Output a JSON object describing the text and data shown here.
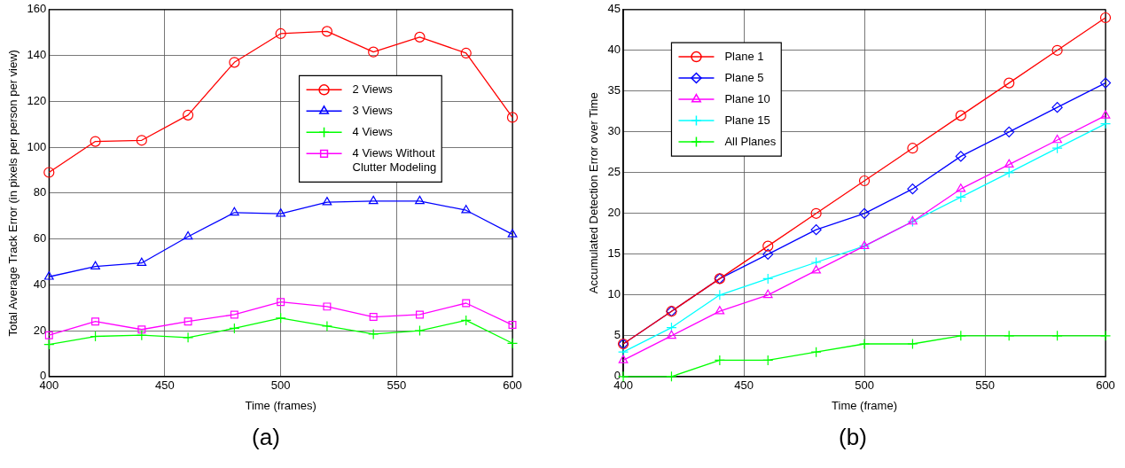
{
  "chart_data": [
    {
      "type": "line",
      "xlabel": "Time (frames)",
      "ylabel": "Total Average Track Error (in pixels per person per view)",
      "x": [
        400,
        420,
        440,
        460,
        480,
        500,
        520,
        540,
        560,
        580,
        600
      ],
      "xlim": [
        400,
        600
      ],
      "xticks": [
        400,
        450,
        500,
        550,
        600
      ],
      "ylim": [
        0,
        160
      ],
      "yticks": [
        0,
        20,
        40,
        60,
        80,
        100,
        120,
        140,
        160
      ],
      "grid": true,
      "legend": "top right",
      "line_style": "solid",
      "annotations": [
        "(a)"
      ],
      "series": [
        {
          "name": "2 Views",
          "color": "#ff0000",
          "marker": "circle",
          "values": [
            89,
            102.5,
            103,
            114,
            137,
            149.5,
            150.5,
            141.5,
            148,
            141,
            113
          ]
        },
        {
          "name": "3 Views",
          "color": "#0000ff",
          "marker": "triangle",
          "values": [
            43.5,
            48,
            49.5,
            61,
            71.5,
            71,
            76,
            76.5,
            76.5,
            72.5,
            62
          ]
        },
        {
          "name": "4 Views",
          "color": "#00ff00",
          "marker": "cross",
          "values": [
            14,
            17.5,
            18,
            17,
            21,
            25.5,
            22,
            18.5,
            20,
            24.5,
            14.5
          ]
        },
        {
          "name": "4 Views Without Clutter Modeling",
          "color": "#ff00ff",
          "marker": "square",
          "values": [
            18,
            24,
            20.5,
            24,
            27,
            32.5,
            30.5,
            26,
            27,
            32,
            22.5
          ]
        }
      ]
    },
    {
      "type": "line",
      "xlabel": "Time (frame)",
      "ylabel": "Accumulated Detection Error over Time",
      "x": [
        400,
        420,
        440,
        460,
        480,
        500,
        520,
        540,
        560,
        580,
        600
      ],
      "xlim": [
        400,
        600
      ],
      "xticks": [
        400,
        450,
        500,
        550,
        600
      ],
      "ylim": [
        0,
        45
      ],
      "yticks": [
        0,
        5,
        10,
        15,
        20,
        25,
        30,
        35,
        40,
        45
      ],
      "grid": true,
      "legend": "top left",
      "line_style": "solid",
      "annotations": [
        "(b)"
      ],
      "series": [
        {
          "name": "Plane 1",
          "color": "#ff0000",
          "marker": "circle",
          "values": [
            4,
            8,
            12,
            16,
            20,
            24,
            28,
            32,
            36,
            40,
            44
          ]
        },
        {
          "name": "Plane 5",
          "color": "#0000ff",
          "marker": "diamond",
          "values": [
            4,
            8,
            12,
            15,
            18,
            20,
            23,
            27,
            30,
            33,
            36
          ]
        },
        {
          "name": "Plane 10",
          "color": "#ff00ff",
          "marker": "triangle",
          "values": [
            2,
            5,
            8,
            10,
            13,
            16,
            19,
            23,
            26,
            29,
            32
          ]
        },
        {
          "name": "Plane 15",
          "color": "#00ffff",
          "marker": "cross",
          "values": [
            3,
            6,
            10,
            12,
            14,
            16,
            19,
            22,
            25,
            28,
            31
          ]
        },
        {
          "name": "All Planes",
          "color": "#00ff00",
          "marker": "cross",
          "values": [
            0,
            0,
            2,
            2,
            3,
            4,
            4,
            5,
            5,
            5,
            5
          ]
        }
      ]
    }
  ]
}
